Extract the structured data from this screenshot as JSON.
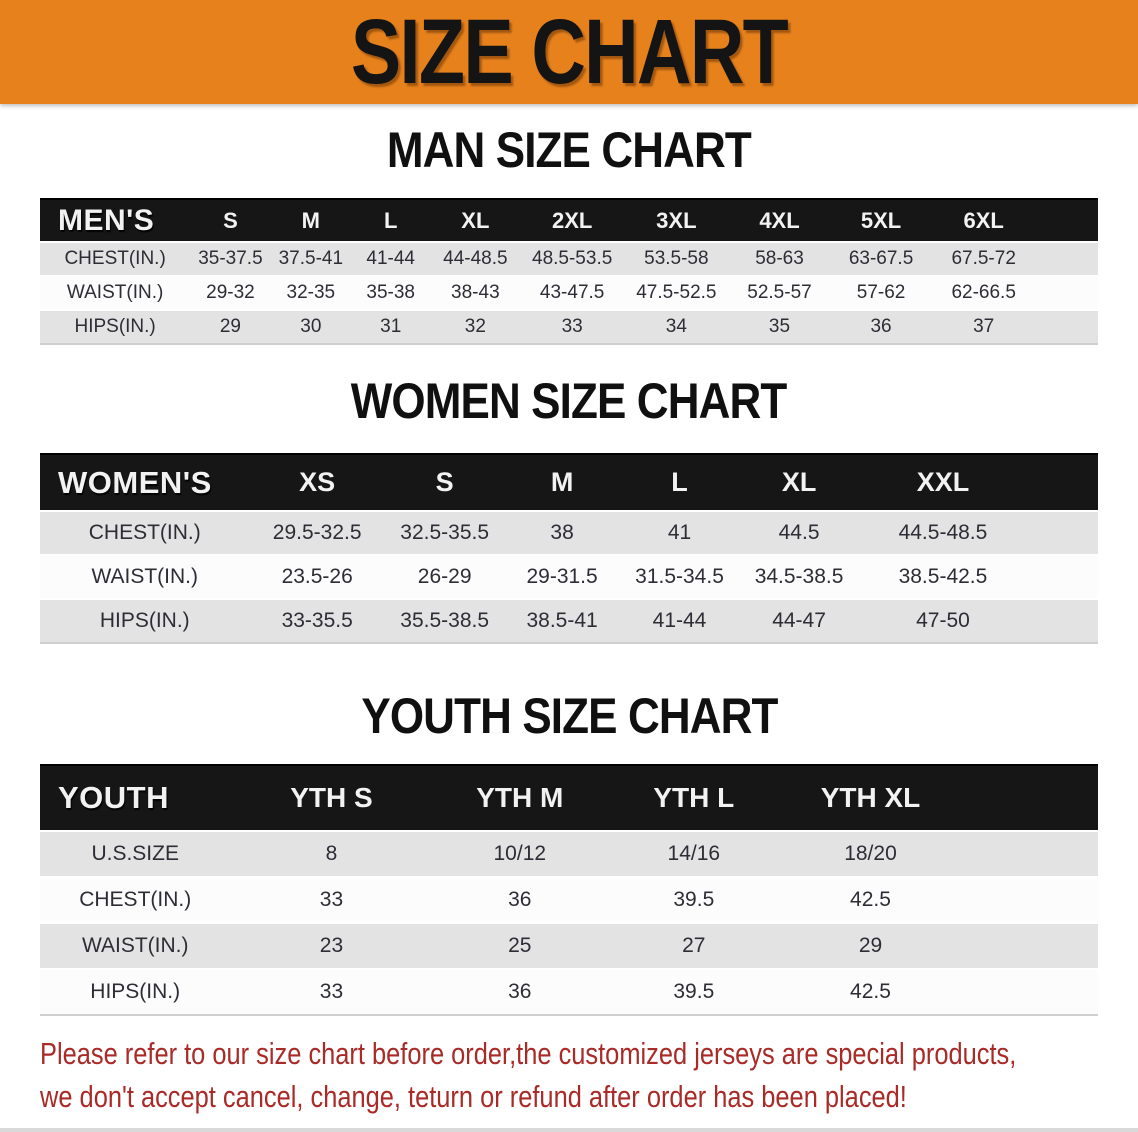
{
  "banner": {
    "title": "SIZE CHART"
  },
  "colors": {
    "banner_bg": "#E6811C",
    "table_header_bg": "#161616",
    "row_shaded": "#e3e3e4",
    "row_plain": "#fcfcfc",
    "disclaimer_red": "#a92b28"
  },
  "men": {
    "heading": "MAN SIZE CHART",
    "table": {
      "header_label": "MEN'S",
      "sizes": [
        "S",
        "M",
        "L",
        "XL",
        "2XL",
        "3XL",
        "4XL",
        "5XL",
        "6XL"
      ],
      "rows": [
        {
          "label": "CHEST(IN.)",
          "values": [
            "35-37.5",
            "37.5-41",
            "41-44",
            "44-48.5",
            "48.5-53.5",
            "53.5-58",
            "58-63",
            "63-67.5",
            "67.5-72"
          ]
        },
        {
          "label": "WAIST(IN.)",
          "values": [
            "29-32",
            "32-35",
            "35-38",
            "38-43",
            "43-47.5",
            "47.5-52.5",
            "52.5-57",
            "57-62",
            "62-66.5"
          ]
        },
        {
          "label": "HIPS(IN.)",
          "values": [
            "29",
            "30",
            "31",
            "32",
            "33",
            "34",
            "35",
            "36",
            "37"
          ]
        }
      ]
    }
  },
  "women": {
    "heading": "WOMEN SIZE CHART",
    "table": {
      "header_label": "WOMEN'S",
      "sizes": [
        "XS",
        "S",
        "M",
        "L",
        "XL",
        "XXL"
      ],
      "rows": [
        {
          "label": "CHEST(IN.)",
          "values": [
            "29.5-32.5",
            "32.5-35.5",
            "38",
            "41",
            "44.5",
            "44.5-48.5"
          ]
        },
        {
          "label": "WAIST(IN.)",
          "values": [
            "23.5-26",
            "26-29",
            "29-31.5",
            "31.5-34.5",
            "34.5-38.5",
            "38.5-42.5"
          ]
        },
        {
          "label": "HIPS(IN.)",
          "values": [
            "33-35.5",
            "35.5-38.5",
            "38.5-41",
            "41-44",
            "44-47",
            "47-50"
          ]
        }
      ]
    }
  },
  "youth": {
    "heading": "YOUTH SIZE CHART",
    "table": {
      "header_label": "YOUTH",
      "sizes": [
        "YTH S",
        "YTH M",
        "YTH L",
        "YTH XL"
      ],
      "rows": [
        {
          "label": "U.S.SIZE",
          "values": [
            "8",
            "10/12",
            "14/16",
            "18/20"
          ]
        },
        {
          "label": "CHEST(IN.)",
          "values": [
            "33",
            "36",
            "39.5",
            "42.5"
          ]
        },
        {
          "label": "WAIST(IN.)",
          "values": [
            "23",
            "25",
            "27",
            "29"
          ]
        },
        {
          "label": "HIPS(IN.)",
          "values": [
            "33",
            "36",
            "39.5",
            "42.5"
          ]
        }
      ]
    }
  },
  "disclaimer": {
    "line1": "Please refer to our size chart before order,the customized jerseys are special products,",
    "line2": "we don't accept cancel, change, teturn or refund after order has been placed!"
  }
}
